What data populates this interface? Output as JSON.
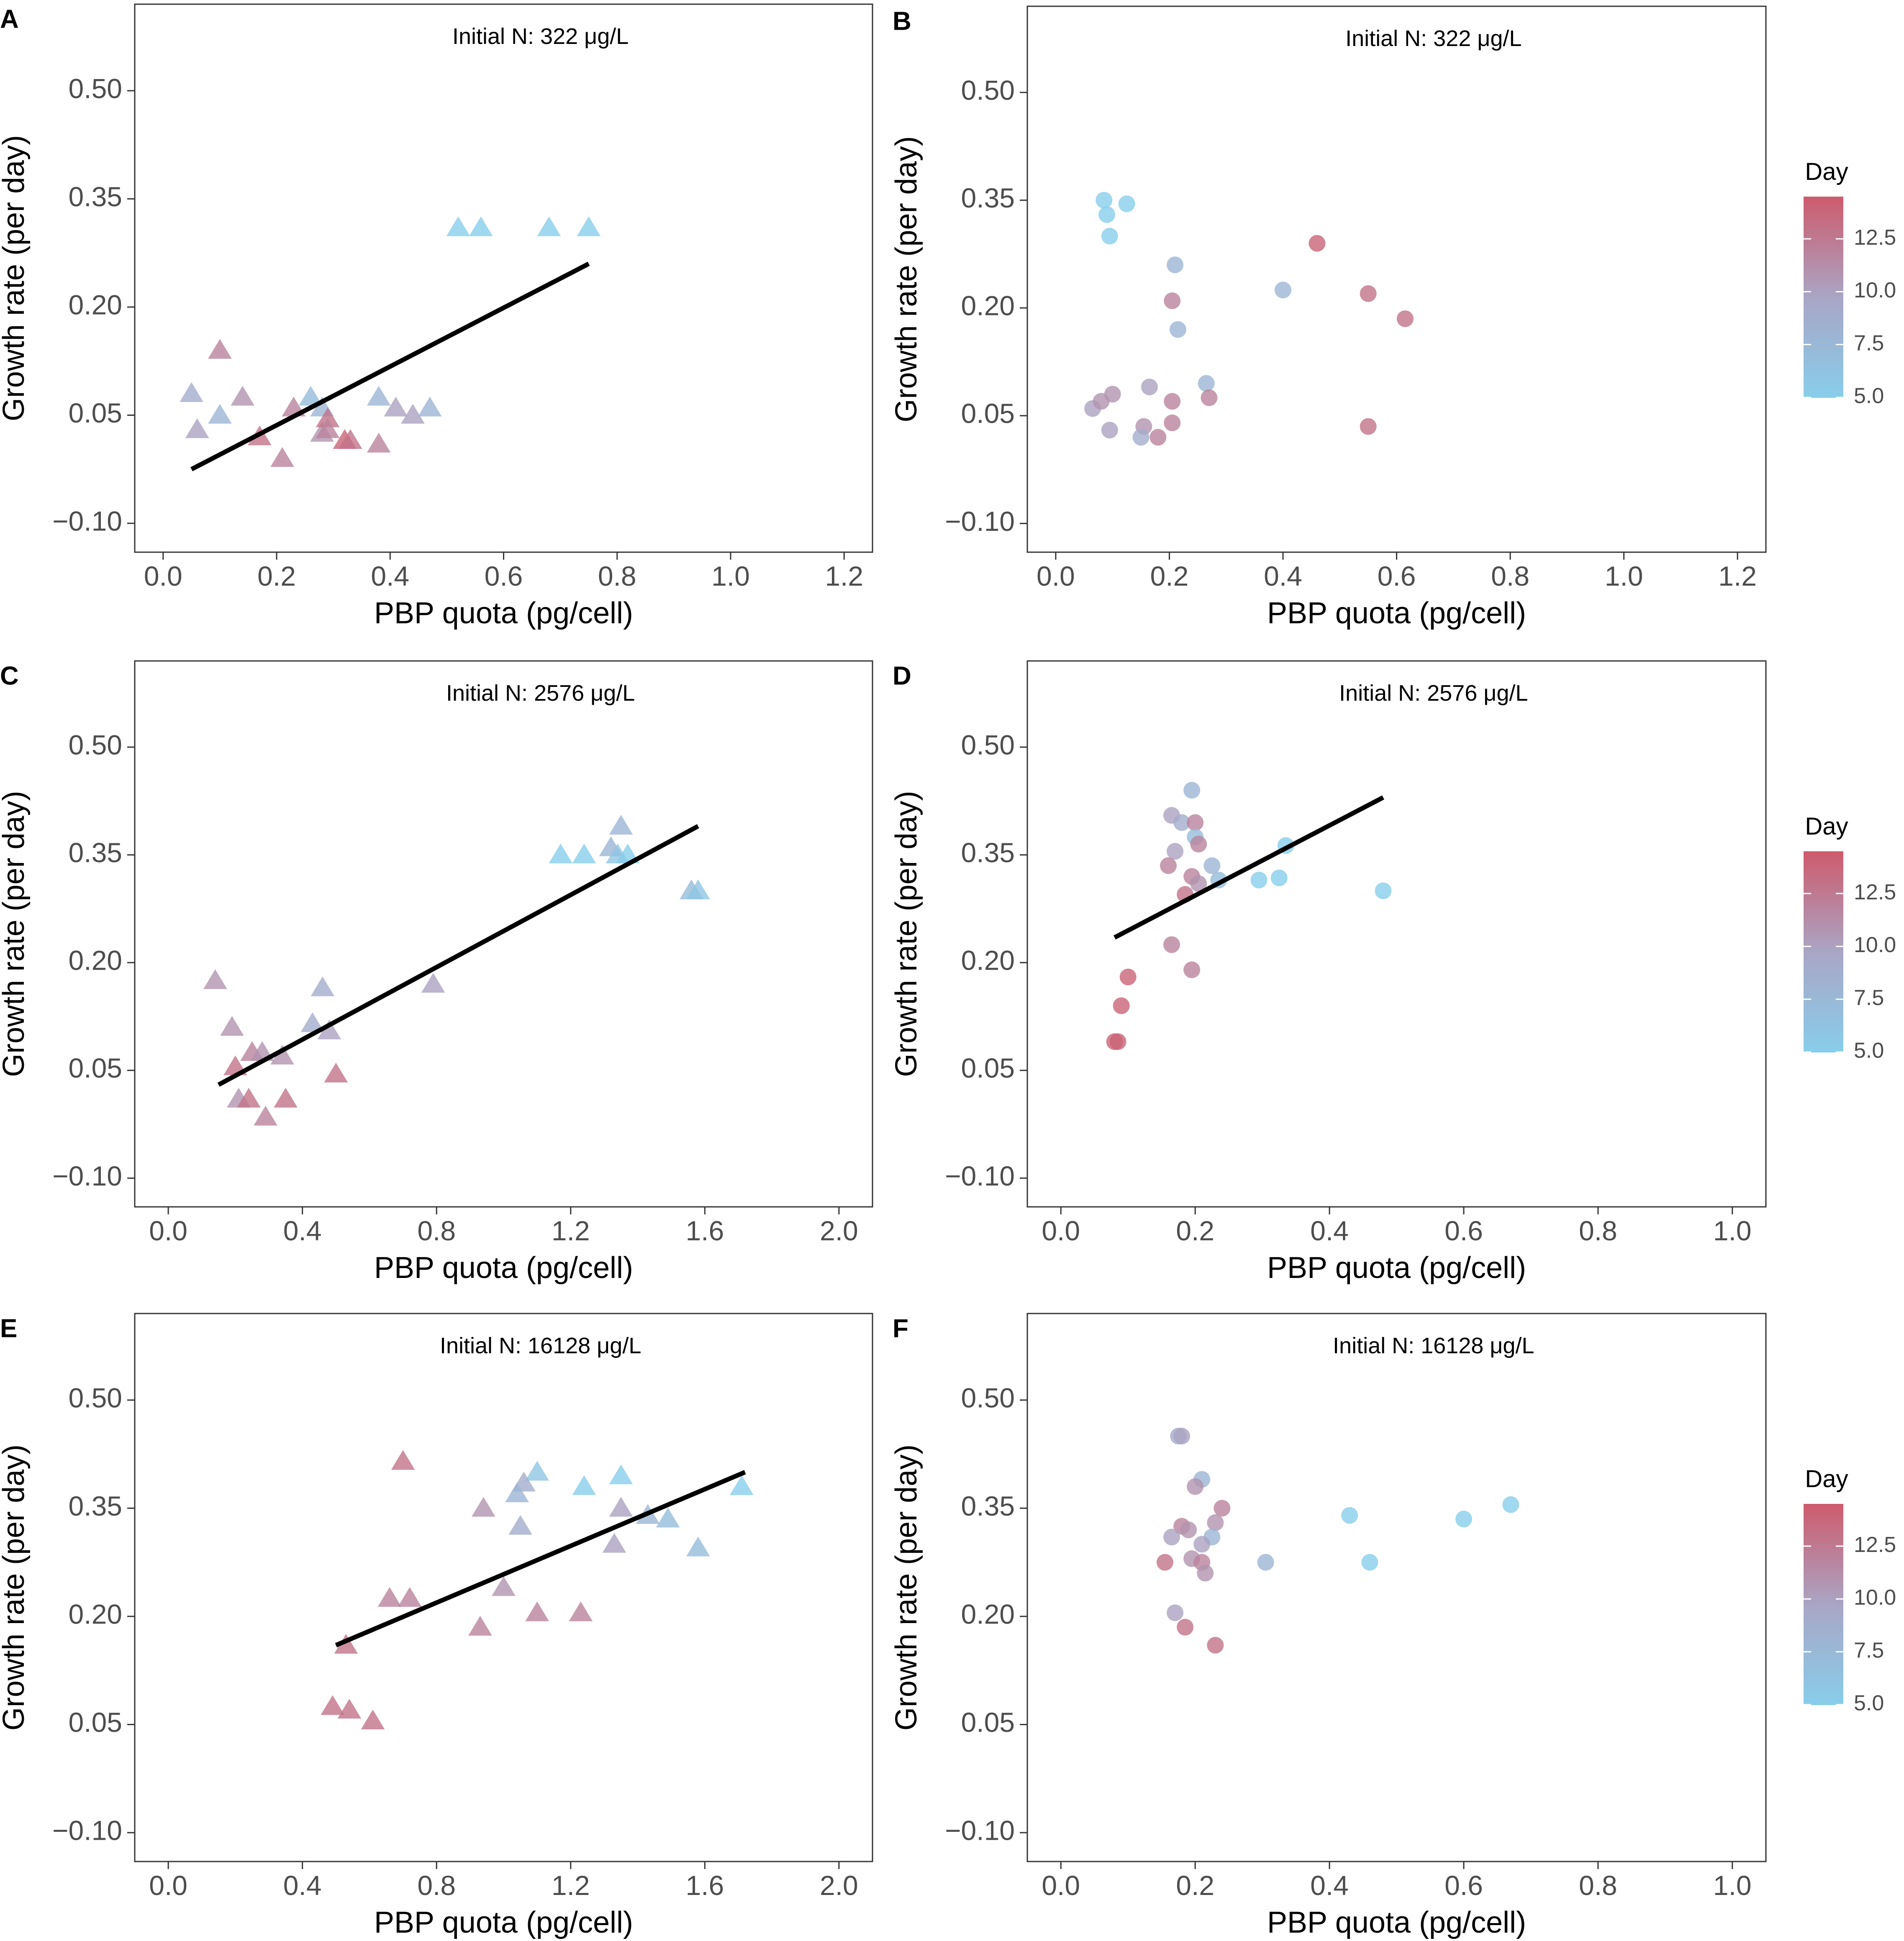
{
  "colors": {
    "day_low": "#87CEEB",
    "day_mid": "#A9A6C6",
    "day_high": "#CD5C6E",
    "fit_line": "#000000",
    "axis": "#333333",
    "tick_text": "#4D4D4D"
  },
  "legend": {
    "title": "Day",
    "ticks": [
      "12.5",
      "10.0",
      "7.5",
      "5.0"
    ],
    "tick_values": [
      12.5,
      10.0,
      7.5,
      5.0
    ],
    "range": [
      5.0,
      14.5
    ]
  },
  "chart_data": [
    {
      "panel_label": "A",
      "type": "scatter",
      "marker": "triangle",
      "annotation": "Initial N: 322 μg/L",
      "xlabel": "PBP quota (pg/cell)",
      "ylabel": "Growth rate (per day)",
      "xlim": [
        -0.05,
        1.25
      ],
      "ylim": [
        -0.14,
        0.62
      ],
      "xticks": [
        0.0,
        0.2,
        0.4,
        0.6,
        0.8,
        1.0,
        1.2
      ],
      "xtick_labels": [
        "0.0",
        "0.2",
        "0.4",
        "0.6",
        "0.8",
        "1.0",
        "1.2"
      ],
      "yticks": [
        -0.1,
        0.05,
        0.2,
        0.35,
        0.5
      ],
      "ytick_labels": [
        "−0.10",
        "0.05",
        "0.20",
        "0.35",
        "0.50"
      ],
      "show_legend": false,
      "fit": {
        "x": [
          0.05,
          0.75
        ],
        "y": [
          -0.025,
          0.26
        ]
      },
      "points": [
        {
          "x": 0.52,
          "y": 0.31,
          "day": 5
        },
        {
          "x": 0.56,
          "y": 0.31,
          "day": 5
        },
        {
          "x": 0.68,
          "y": 0.31,
          "day": 5
        },
        {
          "x": 0.75,
          "y": 0.31,
          "day": 5
        },
        {
          "x": 0.05,
          "y": 0.08,
          "day": 9
        },
        {
          "x": 0.06,
          "y": 0.03,
          "day": 10
        },
        {
          "x": 0.1,
          "y": 0.05,
          "day": 8
        },
        {
          "x": 0.1,
          "y": 0.14,
          "day": 12
        },
        {
          "x": 0.14,
          "y": 0.075,
          "day": 11
        },
        {
          "x": 0.17,
          "y": 0.02,
          "day": 13
        },
        {
          "x": 0.21,
          "y": -0.01,
          "day": 12
        },
        {
          "x": 0.23,
          "y": 0.06,
          "day": 12
        },
        {
          "x": 0.26,
          "y": 0.075,
          "day": 7
        },
        {
          "x": 0.28,
          "y": 0.06,
          "day": 8
        },
        {
          "x": 0.28,
          "y": 0.025,
          "day": 11
        },
        {
          "x": 0.29,
          "y": 0.045,
          "day": 13
        },
        {
          "x": 0.29,
          "y": 0.03,
          "day": 12
        },
        {
          "x": 0.32,
          "y": 0.015,
          "day": 14
        },
        {
          "x": 0.33,
          "y": 0.015,
          "day": 13
        },
        {
          "x": 0.38,
          "y": 0.075,
          "day": 8
        },
        {
          "x": 0.38,
          "y": 0.01,
          "day": 12
        },
        {
          "x": 0.41,
          "y": 0.06,
          "day": 10
        },
        {
          "x": 0.44,
          "y": 0.05,
          "day": 10
        },
        {
          "x": 0.47,
          "y": 0.06,
          "day": 8
        }
      ]
    },
    {
      "panel_label": "B",
      "type": "scatter",
      "marker": "circle",
      "annotation": "Initial N: 322 μg/L",
      "xlabel": "PBP quota (pg/cell)",
      "ylabel": "Growth rate (per day)",
      "xlim": [
        -0.05,
        1.25
      ],
      "ylim": [
        -0.14,
        0.62
      ],
      "xticks": [
        0.0,
        0.2,
        0.4,
        0.6,
        0.8,
        1.0,
        1.2
      ],
      "xtick_labels": [
        "0.0",
        "0.2",
        "0.4",
        "0.6",
        "0.8",
        "1.0",
        "1.2"
      ],
      "yticks": [
        -0.1,
        0.05,
        0.2,
        0.35,
        0.5
      ],
      "ytick_labels": [
        "−0.10",
        "0.05",
        "0.20",
        "0.35",
        "0.50"
      ],
      "show_legend": true,
      "points": [
        {
          "x": 0.085,
          "y": 0.35,
          "day": 5
        },
        {
          "x": 0.09,
          "y": 0.33,
          "day": 5
        },
        {
          "x": 0.125,
          "y": 0.345,
          "day": 5
        },
        {
          "x": 0.095,
          "y": 0.3,
          "day": 5
        },
        {
          "x": 0.21,
          "y": 0.26,
          "day": 8
        },
        {
          "x": 0.4,
          "y": 0.225,
          "day": 8
        },
        {
          "x": 0.205,
          "y": 0.21,
          "day": 12
        },
        {
          "x": 0.215,
          "y": 0.17,
          "day": 8
        },
        {
          "x": 0.46,
          "y": 0.29,
          "day": 14
        },
        {
          "x": 0.55,
          "y": 0.22,
          "day": 13
        },
        {
          "x": 0.615,
          "y": 0.185,
          "day": 13
        },
        {
          "x": 0.55,
          "y": 0.035,
          "day": 13
        },
        {
          "x": 0.065,
          "y": 0.06,
          "day": 10
        },
        {
          "x": 0.08,
          "y": 0.07,
          "day": 11
        },
        {
          "x": 0.1,
          "y": 0.08,
          "day": 11
        },
        {
          "x": 0.095,
          "y": 0.03,
          "day": 10
        },
        {
          "x": 0.165,
          "y": 0.09,
          "day": 10
        },
        {
          "x": 0.155,
          "y": 0.035,
          "day": 11
        },
        {
          "x": 0.15,
          "y": 0.02,
          "day": 9
        },
        {
          "x": 0.18,
          "y": 0.02,
          "day": 12
        },
        {
          "x": 0.205,
          "y": 0.07,
          "day": 12
        },
        {
          "x": 0.205,
          "y": 0.04,
          "day": 12
        },
        {
          "x": 0.265,
          "y": 0.095,
          "day": 8
        },
        {
          "x": 0.27,
          "y": 0.075,
          "day": 12
        }
      ]
    },
    {
      "panel_label": "C",
      "type": "scatter",
      "marker": "triangle",
      "annotation": "Initial N: 2576 μg/L",
      "xlabel": "PBP quota (pg/cell)",
      "ylabel": "Growth rate (per day)",
      "xlim": [
        -0.1,
        2.1
      ],
      "ylim": [
        -0.14,
        0.62
      ],
      "xticks": [
        0.0,
        0.4,
        0.8,
        1.2,
        1.6,
        2.0
      ],
      "xtick_labels": [
        "0.0",
        "0.4",
        "0.8",
        "1.2",
        "1.6",
        "2.0"
      ],
      "yticks": [
        -0.1,
        0.05,
        0.2,
        0.35,
        0.5
      ],
      "ytick_labels": [
        "−0.10",
        "0.05",
        "0.20",
        "0.35",
        "0.50"
      ],
      "show_legend": false,
      "fit": {
        "x": [
          0.15,
          1.58
        ],
        "y": [
          0.03,
          0.39
        ]
      },
      "points": [
        {
          "x": 1.17,
          "y": 0.35,
          "day": 5
        },
        {
          "x": 1.24,
          "y": 0.35,
          "day": 5
        },
        {
          "x": 1.32,
          "y": 0.36,
          "day": 8
        },
        {
          "x": 1.35,
          "y": 0.39,
          "day": 8
        },
        {
          "x": 1.34,
          "y": 0.35,
          "day": 6
        },
        {
          "x": 1.37,
          "y": 0.35,
          "day": 5
        },
        {
          "x": 1.56,
          "y": 0.3,
          "day": 7
        },
        {
          "x": 1.58,
          "y": 0.3,
          "day": 6
        },
        {
          "x": 0.79,
          "y": 0.17,
          "day": 10
        },
        {
          "x": 0.14,
          "y": 0.175,
          "day": 11
        },
        {
          "x": 0.19,
          "y": 0.11,
          "day": 11
        },
        {
          "x": 0.2,
          "y": 0.055,
          "day": 13
        },
        {
          "x": 0.25,
          "y": 0.075,
          "day": 12
        },
        {
          "x": 0.28,
          "y": 0.075,
          "day": 11
        },
        {
          "x": 0.34,
          "y": 0.07,
          "day": 11
        },
        {
          "x": 0.21,
          "y": 0.01,
          "day": 11
        },
        {
          "x": 0.24,
          "y": 0.01,
          "day": 13
        },
        {
          "x": 0.29,
          "y": -0.015,
          "day": 12
        },
        {
          "x": 0.35,
          "y": 0.01,
          "day": 13
        },
        {
          "x": 0.43,
          "y": 0.115,
          "day": 9
        },
        {
          "x": 0.46,
          "y": 0.165,
          "day": 9
        },
        {
          "x": 0.48,
          "y": 0.105,
          "day": 10
        },
        {
          "x": 0.5,
          "y": 0.045,
          "day": 13
        }
      ]
    },
    {
      "panel_label": "D",
      "type": "scatter",
      "marker": "circle",
      "annotation": "Initial N: 2576 μg/L",
      "xlabel": "PBP quota (pg/cell)",
      "ylabel": "Growth rate (per day)",
      "xlim": [
        -0.05,
        1.05
      ],
      "ylim": [
        -0.14,
        0.62
      ],
      "xticks": [
        0.0,
        0.2,
        0.4,
        0.6,
        0.8,
        1.0
      ],
      "xtick_labels": [
        "0.0",
        "0.2",
        "0.4",
        "0.6",
        "0.8",
        "1.0"
      ],
      "yticks": [
        -0.1,
        0.05,
        0.2,
        0.35,
        0.5
      ],
      "ytick_labels": [
        "−0.10",
        "0.05",
        "0.20",
        "0.35",
        "0.50"
      ],
      "show_legend": true,
      "fit": {
        "x": [
          0.08,
          0.48
        ],
        "y": [
          0.235,
          0.43
        ]
      },
      "points": [
        {
          "x": 0.195,
          "y": 0.44,
          "day": 8
        },
        {
          "x": 0.165,
          "y": 0.405,
          "day": 10
        },
        {
          "x": 0.18,
          "y": 0.395,
          "day": 9
        },
        {
          "x": 0.2,
          "y": 0.395,
          "day": 12
        },
        {
          "x": 0.2,
          "y": 0.375,
          "day": 7
        },
        {
          "x": 0.205,
          "y": 0.365,
          "day": 12
        },
        {
          "x": 0.17,
          "y": 0.355,
          "day": 10
        },
        {
          "x": 0.16,
          "y": 0.335,
          "day": 12
        },
        {
          "x": 0.225,
          "y": 0.335,
          "day": 8
        },
        {
          "x": 0.195,
          "y": 0.32,
          "day": 12
        },
        {
          "x": 0.205,
          "y": 0.31,
          "day": 11
        },
        {
          "x": 0.235,
          "y": 0.315,
          "day": 7
        },
        {
          "x": 0.185,
          "y": 0.295,
          "day": 13
        },
        {
          "x": 0.295,
          "y": 0.315,
          "day": 5
        },
        {
          "x": 0.325,
          "y": 0.318,
          "day": 5
        },
        {
          "x": 0.335,
          "y": 0.363,
          "day": 5
        },
        {
          "x": 0.48,
          "y": 0.3,
          "day": 5
        },
        {
          "x": 0.165,
          "y": 0.225,
          "day": 12
        },
        {
          "x": 0.195,
          "y": 0.19,
          "day": 12
        },
        {
          "x": 0.1,
          "y": 0.18,
          "day": 14
        },
        {
          "x": 0.09,
          "y": 0.14,
          "day": 14
        },
        {
          "x": 0.08,
          "y": 0.09,
          "day": 14
        },
        {
          "x": 0.085,
          "y": 0.09,
          "day": 14
        }
      ]
    },
    {
      "panel_label": "E",
      "type": "scatter",
      "marker": "triangle",
      "annotation": "Initial N: 16128 μg/L",
      "xlabel": "PBP quota (pg/cell)",
      "ylabel": "Growth rate (per day)",
      "xlim": [
        -0.1,
        2.1
      ],
      "ylim": [
        -0.14,
        0.62
      ],
      "xticks": [
        0.0,
        0.4,
        0.8,
        1.2,
        1.6,
        2.0
      ],
      "xtick_labels": [
        "0.0",
        "0.4",
        "0.8",
        "1.2",
        "1.6",
        "2.0"
      ],
      "yticks": [
        -0.1,
        0.05,
        0.2,
        0.35,
        0.5
      ],
      "ytick_labels": [
        "−0.10",
        "0.05",
        "0.20",
        "0.35",
        "0.50"
      ],
      "show_legend": false,
      "fit": {
        "x": [
          0.5,
          1.72
        ],
        "y": [
          0.16,
          0.4
        ]
      },
      "points": [
        {
          "x": 0.7,
          "y": 0.415,
          "day": 13
        },
        {
          "x": 1.1,
          "y": 0.4,
          "day": 6
        },
        {
          "x": 1.35,
          "y": 0.395,
          "day": 5
        },
        {
          "x": 1.24,
          "y": 0.38,
          "day": 5
        },
        {
          "x": 1.71,
          "y": 0.38,
          "day": 5
        },
        {
          "x": 1.06,
          "y": 0.385,
          "day": 9
        },
        {
          "x": 1.04,
          "y": 0.37,
          "day": 8
        },
        {
          "x": 0.94,
          "y": 0.35,
          "day": 11
        },
        {
          "x": 1.35,
          "y": 0.35,
          "day": 10
        },
        {
          "x": 1.43,
          "y": 0.34,
          "day": 8
        },
        {
          "x": 1.49,
          "y": 0.335,
          "day": 7
        },
        {
          "x": 1.05,
          "y": 0.325,
          "day": 9
        },
        {
          "x": 1.33,
          "y": 0.3,
          "day": 10
        },
        {
          "x": 1.58,
          "y": 0.295,
          "day": 7
        },
        {
          "x": 1.0,
          "y": 0.24,
          "day": 11
        },
        {
          "x": 0.66,
          "y": 0.225,
          "day": 12
        },
        {
          "x": 0.72,
          "y": 0.225,
          "day": 12
        },
        {
          "x": 1.1,
          "y": 0.205,
          "day": 12
        },
        {
          "x": 1.23,
          "y": 0.205,
          "day": 12
        },
        {
          "x": 0.93,
          "y": 0.185,
          "day": 12
        },
        {
          "x": 0.53,
          "y": 0.16,
          "day": 13
        },
        {
          "x": 0.49,
          "y": 0.075,
          "day": 13
        },
        {
          "x": 0.54,
          "y": 0.07,
          "day": 13
        },
        {
          "x": 0.61,
          "y": 0.055,
          "day": 13
        }
      ]
    },
    {
      "panel_label": "F",
      "type": "scatter",
      "marker": "circle",
      "annotation": "Initial N: 16128 μg/L",
      "xlabel": "PBP quota (pg/cell)",
      "ylabel": "Growth rate (per day)",
      "xlim": [
        -0.05,
        1.05
      ],
      "ylim": [
        -0.14,
        0.62
      ],
      "xticks": [
        0.0,
        0.2,
        0.4,
        0.6,
        0.8,
        1.0
      ],
      "xtick_labels": [
        "0.0",
        "0.2",
        "0.4",
        "0.6",
        "0.8",
        "1.0"
      ],
      "yticks": [
        -0.1,
        0.05,
        0.2,
        0.35,
        0.5
      ],
      "ytick_labels": [
        "−0.10",
        "0.05",
        "0.20",
        "0.35",
        "0.50"
      ],
      "show_legend": true,
      "points": [
        {
          "x": 0.175,
          "y": 0.45,
          "day": 9
        },
        {
          "x": 0.18,
          "y": 0.45,
          "day": 10
        },
        {
          "x": 0.21,
          "y": 0.39,
          "day": 8
        },
        {
          "x": 0.2,
          "y": 0.38,
          "day": 11
        },
        {
          "x": 0.24,
          "y": 0.35,
          "day": 12
        },
        {
          "x": 0.18,
          "y": 0.325,
          "day": 12
        },
        {
          "x": 0.19,
          "y": 0.32,
          "day": 11
        },
        {
          "x": 0.23,
          "y": 0.33,
          "day": 11
        },
        {
          "x": 0.165,
          "y": 0.31,
          "day": 10
        },
        {
          "x": 0.225,
          "y": 0.31,
          "day": 8
        },
        {
          "x": 0.21,
          "y": 0.3,
          "day": 10
        },
        {
          "x": 0.195,
          "y": 0.28,
          "day": 11
        },
        {
          "x": 0.155,
          "y": 0.275,
          "day": 13
        },
        {
          "x": 0.21,
          "y": 0.275,
          "day": 12
        },
        {
          "x": 0.215,
          "y": 0.26,
          "day": 11
        },
        {
          "x": 0.305,
          "y": 0.275,
          "day": 8
        },
        {
          "x": 0.43,
          "y": 0.34,
          "day": 5
        },
        {
          "x": 0.6,
          "y": 0.335,
          "day": 5
        },
        {
          "x": 0.67,
          "y": 0.355,
          "day": 5
        },
        {
          "x": 0.46,
          "y": 0.275,
          "day": 5
        },
        {
          "x": 0.17,
          "y": 0.205,
          "day": 10
        },
        {
          "x": 0.185,
          "y": 0.185,
          "day": 13
        },
        {
          "x": 0.23,
          "y": 0.16,
          "day": 13
        }
      ]
    }
  ]
}
